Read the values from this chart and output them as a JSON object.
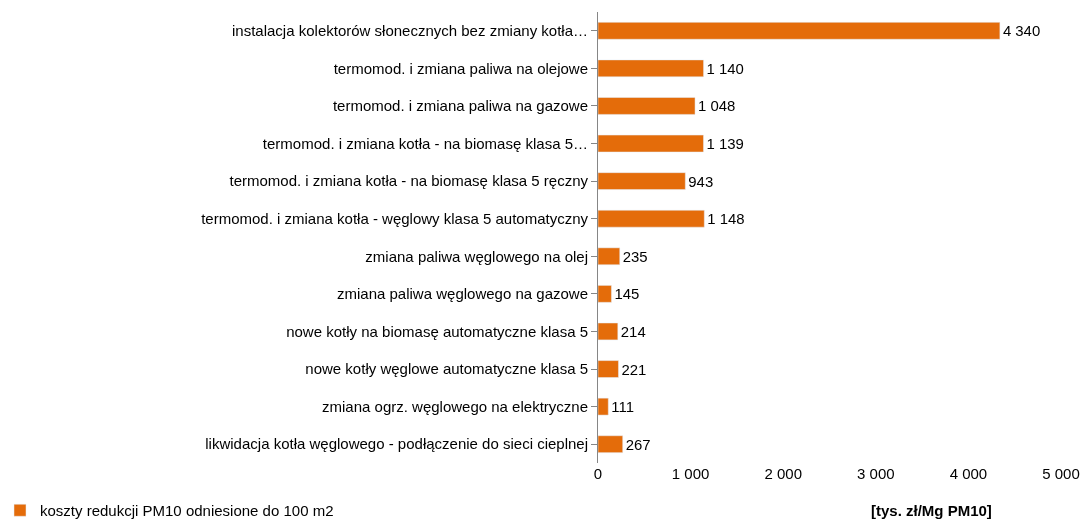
{
  "chart_data": {
    "type": "bar",
    "orientation": "horizontal",
    "xlabel": "[tys. zł/Mg PM10]",
    "categories": [
      "instalacja kolektorów słonecznych bez zmiany kotła…",
      "termomod. i zmiana paliwa na olejowe",
      "termomod. i zmiana paliwa na gazowe",
      "termomod. i zmiana kotła - na biomasę klasa 5…",
      "termomod. i zmiana kotła - na biomasę klasa 5 ręczny",
      "termomod. i zmiana kotła - węglowy klasa 5 automatyczny",
      "zmiana paliwa węglowego na olej",
      "zmiana paliwa węglowego na gazowe",
      "nowe kotły na biomasę automatyczne klasa 5",
      "nowe kotły węglowe automatyczne klasa 5",
      "zmiana ogrz. węglowego na elektryczne",
      "likwidacja kotła węglowego - podłączenie do sieci cieplnej"
    ],
    "series": [
      {
        "name": "koszty redukcji PM10 odniesione do 100 m2",
        "color": "#e46c0a",
        "values": [
          4340,
          1140,
          1048,
          1139,
          943,
          1148,
          235,
          145,
          214,
          221,
          111,
          267
        ],
        "value_labels": [
          "4 340",
          "1 140",
          "1 048",
          "1 139",
          "943",
          "1 148",
          "235",
          "145",
          "214",
          "221",
          "111",
          "267"
        ]
      }
    ],
    "xlim": [
      0,
      5000
    ],
    "xticks": [
      0,
      {
        "value": 1000,
        "label": "1 000"
      },
      {
        "value": 2000,
        "label": "2 000"
      },
      {
        "value": 3000,
        "label": "3 000"
      },
      {
        "value": 4000,
        "label": "4 000"
      },
      {
        "value": 5000,
        "label": "5 000"
      }
    ],
    "legend": "bottom left"
  }
}
